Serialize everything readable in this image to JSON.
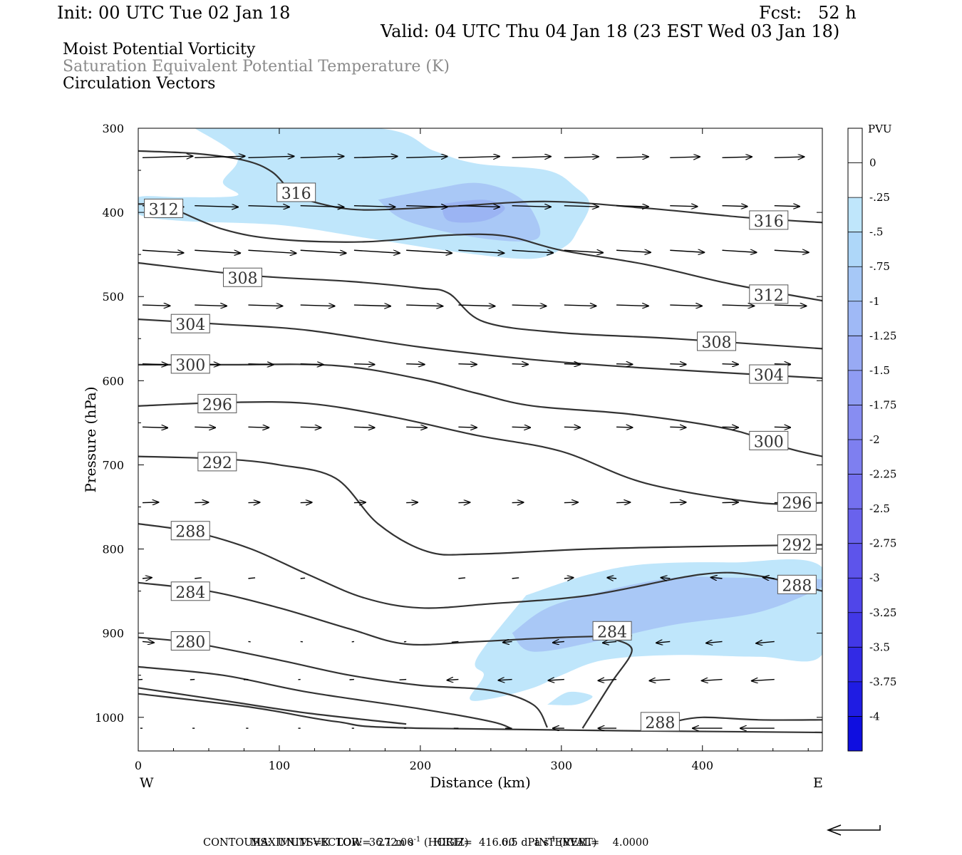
{
  "header": {
    "init": "Init: 00 UTC Tue 02 Jan 18",
    "fcst": "Fcst:   52 h",
    "valid": "Valid: 04 UTC Thu 04 Jan 18 (23 EST Wed 03 Jan 18)"
  },
  "fields": {
    "shaded": "Moist Potential Vorticity",
    "contours": "Saturation Equivalent Potential Temperature (K)",
    "vectors": "Circulation Vectors"
  },
  "colors": {
    "shade_levels": [
      "#bfe6fb",
      "#a9c8f6",
      "#9bb4f3"
    ],
    "contour": "#333333",
    "frame": "#000000"
  },
  "chart_data": {
    "type": "contour",
    "xlabel": "Distance (km)",
    "ylabel": "Pressure (hPa)",
    "xlim": [
      0,
      485
    ],
    "ylim": [
      1040,
      300
    ],
    "x_ticks": [
      0,
      100,
      200,
      300,
      400
    ],
    "y_ticks": [
      300,
      400,
      500,
      600,
      700,
      800,
      900,
      1000
    ],
    "x_end_labels": {
      "left": "W",
      "right": "E"
    },
    "colorbar": {
      "unit": "PVU",
      "ticks": [
        "0",
        "-.25",
        "-.5",
        "-.75",
        "-1",
        "-1.25",
        "-1.5",
        "-1.75",
        "-2",
        "-2.25",
        "-2.5",
        "-2.75",
        "-3",
        "-3.25",
        "-3.5",
        "-3.75",
        "-4"
      ],
      "colors": [
        "#ffffff",
        "#ffffff",
        "#bfe6fb",
        "#aed7f9",
        "#a6c8f7",
        "#9fb9f6",
        "#98aaf4",
        "#8f9cf3",
        "#878df2",
        "#7e7ff0",
        "#7470ef",
        "#6962ed",
        "#5d54eb",
        "#5046e9",
        "#4238e7",
        "#322ae5",
        "#1f1ce3",
        "#0f0ee0"
      ]
    },
    "contours": [
      {
        "label": "316",
        "points": [
          [
            0,
            327
          ],
          [
            40,
            330
          ],
          [
            75,
            338
          ],
          [
            95,
            352
          ],
          [
            110,
            377
          ],
          [
            130,
            390
          ],
          [
            160,
            397
          ],
          [
            220,
            393
          ],
          [
            290,
            387
          ],
          [
            360,
            395
          ],
          [
            430,
            406
          ],
          [
            485,
            412
          ]
        ],
        "labels_at": [
          [
            112,
            377
          ],
          [
            447,
            410
          ]
        ]
      },
      {
        "label": "312",
        "points": [
          [
            0,
            390
          ],
          [
            20,
            393
          ],
          [
            60,
            420
          ],
          [
            100,
            432
          ],
          [
            160,
            435
          ],
          [
            220,
            427
          ],
          [
            260,
            428
          ],
          [
            300,
            445
          ],
          [
            360,
            462
          ],
          [
            420,
            485
          ],
          [
            485,
            505
          ]
        ],
        "labels_at": [
          [
            18,
            396
          ],
          [
            447,
            498
          ]
        ]
      },
      {
        "label": "308",
        "points": [
          [
            0,
            460
          ],
          [
            80,
            475
          ],
          [
            150,
            482
          ],
          [
            200,
            490
          ],
          [
            220,
            496
          ],
          [
            245,
            530
          ],
          [
            300,
            543
          ],
          [
            380,
            550
          ],
          [
            485,
            562
          ]
        ],
        "labels_at": [
          [
            74,
            478
          ],
          [
            410,
            554
          ]
        ]
      },
      {
        "label": "304",
        "points": [
          [
            0,
            527
          ],
          [
            60,
            533
          ],
          [
            120,
            540
          ],
          [
            200,
            560
          ],
          [
            280,
            575
          ],
          [
            360,
            585
          ],
          [
            485,
            597
          ]
        ],
        "labels_at": [
          [
            37,
            533
          ],
          [
            447,
            593
          ]
        ]
      },
      {
        "label": "300",
        "points": [
          [
            0,
            581
          ],
          [
            60,
            581
          ],
          [
            140,
            582
          ],
          [
            200,
            598
          ],
          [
            240,
            615
          ],
          [
            280,
            630
          ],
          [
            350,
            640
          ],
          [
            420,
            658
          ],
          [
            460,
            680
          ],
          [
            485,
            690
          ]
        ],
        "labels_at": [
          [
            37,
            581
          ],
          [
            447,
            672
          ]
        ]
      },
      {
        "label": "296",
        "points": [
          [
            0,
            630
          ],
          [
            60,
            626
          ],
          [
            120,
            627
          ],
          [
            180,
            643
          ],
          [
            240,
            665
          ],
          [
            300,
            684
          ],
          [
            360,
            722
          ],
          [
            440,
            745
          ],
          [
            485,
            745
          ]
        ],
        "labels_at": [
          [
            56,
            628
          ],
          [
            467,
            745
          ]
        ]
      },
      {
        "label": "292",
        "points": [
          [
            0,
            690
          ],
          [
            60,
            693
          ],
          [
            100,
            700
          ],
          [
            140,
            716
          ],
          [
            170,
            770
          ],
          [
            205,
            803
          ],
          [
            240,
            806
          ],
          [
            320,
            800
          ],
          [
            400,
            797
          ],
          [
            485,
            795
          ]
        ],
        "labels_at": [
          [
            56,
            697
          ],
          [
            467,
            795
          ]
        ]
      },
      {
        "label": "288",
        "points": [
          [
            0,
            770
          ],
          [
            40,
            780
          ],
          [
            80,
            800
          ],
          [
            120,
            830
          ],
          [
            160,
            858
          ],
          [
            200,
            870
          ],
          [
            250,
            865
          ],
          [
            320,
            855
          ],
          [
            400,
            830
          ],
          [
            440,
            832
          ],
          [
            485,
            850
          ]
        ],
        "labels_at": [
          [
            37,
            779
          ],
          [
            467,
            843
          ]
        ]
      },
      {
        "label": "284",
        "points": [
          [
            0,
            840
          ],
          [
            50,
            850
          ],
          [
            100,
            870
          ],
          [
            150,
            895
          ],
          [
            190,
            913
          ],
          [
            240,
            910
          ],
          [
            300,
            905
          ],
          [
            350,
            903
          ]
        ],
        "labels_at": [
          [
            37,
            851
          ],
          [
            336,
            898
          ]
        ]
      },
      {
        "label": "280",
        "points": [
          [
            0,
            905
          ],
          [
            40,
            912
          ],
          [
            100,
            932
          ],
          [
            150,
            950
          ],
          [
            200,
            962
          ],
          [
            250,
            968
          ],
          [
            280,
            985
          ],
          [
            290,
            1012
          ]
        ],
        "labels_at": [
          [
            37,
            910
          ]
        ]
      },
      {
        "label": "",
        "points": [
          [
            0,
            940
          ],
          [
            60,
            950
          ],
          [
            120,
            970
          ],
          [
            200,
            990
          ],
          [
            250,
            1005
          ],
          [
            264,
            1013
          ]
        ],
        "labels_at": []
      },
      {
        "label": "",
        "points": [
          [
            0,
            965
          ],
          [
            60,
            980
          ],
          [
            120,
            995
          ],
          [
            190,
            1008
          ]
        ],
        "labels_at": []
      },
      {
        "label": "",
        "points": [
          [
            0,
            972
          ],
          [
            80,
            988
          ],
          [
            140,
            1005
          ],
          [
            200,
            1013
          ],
          [
            485,
            1018
          ]
        ],
        "labels_at": []
      },
      {
        "label": "",
        "points": [
          [
            315,
            1013
          ],
          [
            335,
            960
          ],
          [
            350,
            920
          ],
          [
            335,
            906
          ]
        ],
        "labels_at": []
      },
      {
        "label": "288",
        "points": [
          [
            380,
            1005
          ],
          [
            400,
            1000
          ],
          [
            440,
            1003
          ],
          [
            485,
            1003
          ]
        ],
        "labels_at": [
          [
            370,
            1006
          ]
        ]
      }
    ],
    "shaded_regions": [
      {
        "level": "-0.25 to -0.5",
        "points": [
          [
            40,
            300
          ],
          [
            170,
            300
          ],
          [
            210,
            327
          ],
          [
            240,
            342
          ],
          [
            290,
            350
          ],
          [
            310,
            370
          ],
          [
            320,
            390
          ],
          [
            312,
            420
          ],
          [
            303,
            440
          ],
          [
            280,
            455
          ],
          [
            230,
            448
          ],
          [
            160,
            430
          ],
          [
            100,
            415
          ],
          [
            30,
            410
          ],
          [
            0,
            402
          ],
          [
            0,
            382
          ],
          [
            30,
            382
          ],
          [
            70,
            380
          ],
          [
            60,
            364
          ],
          [
            70,
            334
          ]
        ]
      },
      {
        "level": "-0.5 to -1",
        "points": [
          [
            170,
            385
          ],
          [
            210,
            372
          ],
          [
            240,
            365
          ],
          [
            265,
            377
          ],
          [
            280,
            400
          ],
          [
            282,
            432
          ],
          [
            240,
            430
          ],
          [
            190,
            410
          ]
        ]
      },
      {
        "level": "-1 to -1.5",
        "points": [
          [
            215,
            390
          ],
          [
            245,
            385
          ],
          [
            260,
            395
          ],
          [
            245,
            410
          ],
          [
            220,
            410
          ]
        ]
      },
      {
        "level": "-0.25 to -0.5",
        "points": [
          [
            275,
            855
          ],
          [
            320,
            830
          ],
          [
            360,
            818
          ],
          [
            420,
            816
          ],
          [
            485,
            822
          ],
          [
            485,
            925
          ],
          [
            440,
            928
          ],
          [
            380,
            926
          ],
          [
            330,
            932
          ],
          [
            300,
            950
          ],
          [
            280,
            965
          ],
          [
            250,
            978
          ],
          [
            235,
            978
          ],
          [
            245,
            950
          ],
          [
            240,
            930
          ]
        ]
      },
      {
        "level": "-0.5 to -1",
        "points": [
          [
            265,
            900
          ],
          [
            290,
            870
          ],
          [
            330,
            850
          ],
          [
            380,
            834
          ],
          [
            420,
            834
          ],
          [
            485,
            836
          ],
          [
            485,
            845
          ],
          [
            440,
            875
          ],
          [
            380,
            890
          ],
          [
            330,
            908
          ],
          [
            280,
            922
          ]
        ]
      },
      {
        "level": "-0.25 to -0.5",
        "points": [
          [
            290,
            985
          ],
          [
            305,
            970
          ],
          [
            322,
            975
          ],
          [
            310,
            985
          ]
        ]
      }
    ],
    "max_vector": {
      "horizontal": "36.1 m s-1 (HORIZ)",
      "vertical": "6.5 dPa s-1 (VERT)"
    },
    "contour_info": {
      "units": "K",
      "low": "272.00",
      "high": "416.00",
      "interval": "4.0000"
    }
  },
  "footer": {
    "max_vector_label": "MAXIMUM VECTOR:",
    "horiz_value": "36.1 m s",
    "horiz_unit": "(HORIZ)",
    "vert_value": "6.5 dPa s",
    "vert_unit": "(VERT)",
    "exponent": "-1",
    "contours_line": "CONTOURS:  UNITS=K  LOW=  272.00      HIGH=  416.00      INTERVAL=    4.0000"
  }
}
